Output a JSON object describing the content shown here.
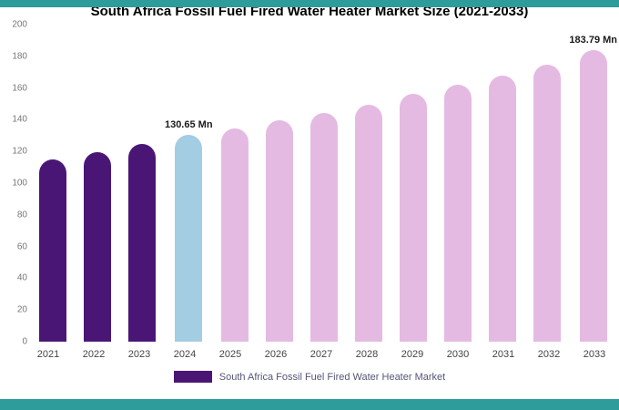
{
  "page": {
    "accent_strip_color": "#2d9c9a"
  },
  "chart_data": {
    "type": "bar",
    "title": "South Africa Fossil Fuel Fired Water Heater Market Size (2021-2033)",
    "categories": [
      "2021",
      "2022",
      "2023",
      "2024",
      "2025",
      "2026",
      "2027",
      "2028",
      "2029",
      "2030",
      "2031",
      "2032",
      "2033"
    ],
    "values": [
      115,
      119.5,
      124.5,
      130.65,
      134.5,
      139.5,
      144,
      149.5,
      156.5,
      162,
      168,
      174.5,
      183.79
    ],
    "bar_colors": [
      "#4a1676",
      "#4a1676",
      "#4a1676",
      "#a3cde3",
      "#e4bae2",
      "#e4bae2",
      "#e4bae2",
      "#e4bae2",
      "#e4bae2",
      "#e4bae2",
      "#e4bae2",
      "#e4bae2",
      "#e4bae2"
    ],
    "value_labels": [
      {
        "index": 3,
        "text": "130.65 Mn"
      },
      {
        "index": 12,
        "text": "183.79 Mn"
      }
    ],
    "ylim": [
      0,
      200
    ],
    "yticks": [
      0,
      20,
      40,
      60,
      80,
      100,
      120,
      140,
      160,
      180,
      200
    ],
    "grid": false,
    "legend_position": "bottom",
    "legend": [
      {
        "label": "South Africa Fossil Fuel Fired Water Heater Market",
        "color": "#4a1676"
      }
    ]
  }
}
